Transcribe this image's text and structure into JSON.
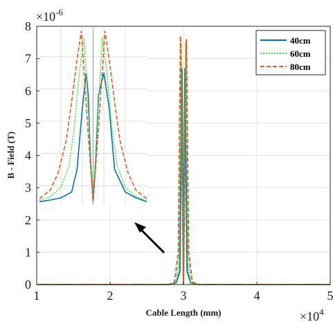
{
  "chart_data": {
    "type": "line",
    "title": "",
    "xlabel": "Cable Length (mm)",
    "ylabel": "B - Field (T)",
    "x_multiplier_label": "×10",
    "x_multiplier_exp": "4",
    "y_multiplier_label": "×10",
    "y_multiplier_exp": "-6",
    "xlim": [
      1,
      5
    ],
    "ylim": [
      0,
      8
    ],
    "xticks": [
      1,
      2,
      3,
      4,
      5
    ],
    "yticks": [
      0,
      1,
      2,
      3,
      4,
      5,
      6,
      7,
      8
    ],
    "xtick_labels": [
      "1",
      "2",
      "3",
      "4",
      "5"
    ],
    "ytick_labels": [
      "0",
      "1",
      "2",
      "3",
      "4",
      "5",
      "6",
      "7",
      "8"
    ],
    "grid": true,
    "legend_position": "top-right",
    "series": [
      {
        "name": "40cm",
        "color": "#0072bd",
        "style": "solid",
        "x": [
          1,
          2.8,
          2.9,
          2.95,
          2.98,
          3.0,
          3.02,
          3.05,
          3.1,
          3.2,
          5
        ],
        "y": [
          0,
          0,
          0.05,
          0.4,
          6.7,
          0.0,
          6.7,
          0.4,
          0.05,
          0,
          0
        ]
      },
      {
        "name": "60cm",
        "color": "#33ee33",
        "style": "dotted",
        "x": [
          1,
          2.8,
          2.9,
          2.94,
          2.97,
          3.0,
          3.03,
          3.06,
          3.1,
          3.2,
          5
        ],
        "y": [
          0,
          0,
          0.06,
          0.7,
          7.5,
          0.0,
          7.5,
          0.7,
          0.06,
          0,
          0
        ]
      },
      {
        "name": "80cm",
        "color": "#e8561c",
        "style": "dashed",
        "x": [
          1,
          2.8,
          2.88,
          2.93,
          2.96,
          3.0,
          3.04,
          3.07,
          3.12,
          3.2,
          5
        ],
        "y": [
          0,
          0,
          0.08,
          1.0,
          7.7,
          0.0,
          7.6,
          1.0,
          0.08,
          0,
          0
        ]
      }
    ],
    "inset": {
      "xlim": [
        0,
        20
      ],
      "ylim": [
        2.4,
        7.9
      ],
      "series": [
        {
          "name": "40cm",
          "x": [
            0,
            2,
            4,
            6,
            7,
            8,
            8.7,
            9.1,
            9.5,
            10,
            10.5,
            11,
            12,
            13,
            14,
            16,
            18,
            20
          ],
          "y": [
            2.5,
            2.55,
            2.62,
            2.8,
            3.5,
            5.4,
            6.5,
            5.8,
            3.8,
            2.5,
            3.8,
            5.8,
            6.5,
            5.4,
            3.5,
            2.8,
            2.62,
            2.5
          ]
        },
        {
          "name": "60cm",
          "x": [
            0,
            2,
            4,
            5.5,
            6.5,
            7.5,
            8.3,
            9.2,
            10,
            10.8,
            11.7,
            12.5,
            13.5,
            14.5,
            16,
            18,
            20
          ],
          "y": [
            2.55,
            2.65,
            2.95,
            3.6,
            4.8,
            6.6,
            7.6,
            5.0,
            2.5,
            5.0,
            7.6,
            6.6,
            4.8,
            3.6,
            2.95,
            2.65,
            2.55
          ]
        },
        {
          "name": "80cm",
          "x": [
            0,
            2,
            3.5,
            5,
            6,
            7,
            7.8,
            9,
            10,
            11,
            12.2,
            13,
            14,
            15,
            16.5,
            18,
            20
          ],
          "y": [
            2.6,
            2.85,
            3.4,
            4.4,
            5.6,
            6.9,
            7.8,
            4.8,
            2.5,
            4.8,
            7.8,
            6.9,
            5.6,
            4.4,
            3.4,
            2.85,
            2.6
          ]
        }
      ]
    }
  }
}
